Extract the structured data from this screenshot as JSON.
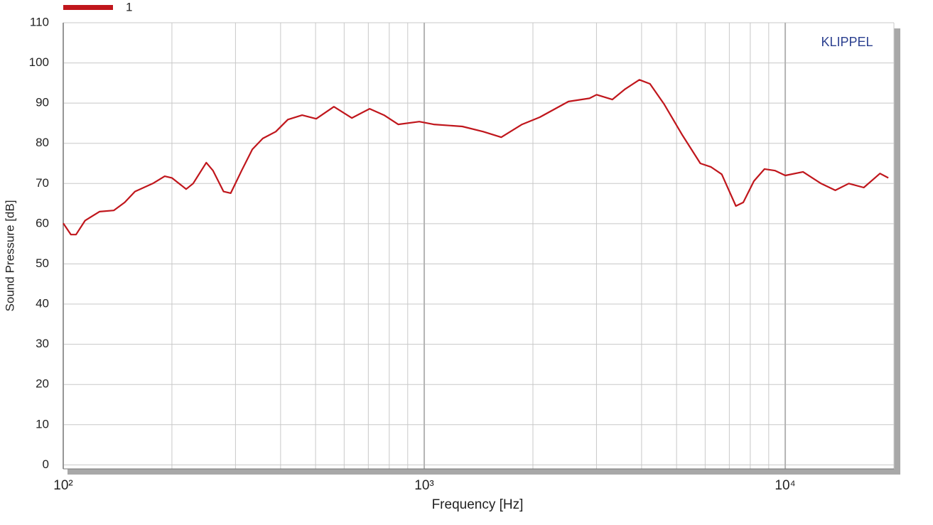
{
  "chart_data": {
    "type": "line",
    "brand": "KLIPPEL",
    "x_label": "Frequency [Hz]",
    "y_label": "Sound Pressure [dB]",
    "log_x": true,
    "xlim": [
      100,
      20000
    ],
    "ylim": [
      -1,
      110
    ],
    "xticks": [
      {
        "value": 100,
        "label": "10²"
      },
      {
        "value": 1000,
        "label": "10³"
      },
      {
        "value": 10000,
        "label": "10⁴"
      }
    ],
    "minor_xticks": [
      200,
      300,
      400,
      500,
      600,
      700,
      800,
      900,
      2000,
      3000,
      4000,
      5000,
      6000,
      7000,
      8000,
      9000,
      20000
    ],
    "yticks": [
      0,
      10,
      20,
      30,
      40,
      50,
      60,
      70,
      80,
      90,
      100,
      110
    ],
    "grid": true,
    "legend": "top-left",
    "x": [
      100,
      105,
      108.5,
      115,
      126,
      138,
      148,
      158,
      177,
      191,
      200,
      219,
      229,
      249,
      260,
      278,
      291,
      312,
      334,
      357,
      388,
      419,
      459,
      502,
      562,
      630,
      706,
      774,
      847,
      969,
      1062,
      1275,
      1457,
      1634,
      1866,
      2089,
      2509,
      2869,
      3003,
      3319,
      3601,
      3944,
      4220,
      4623,
      5190,
      5820,
      6230,
      6670,
      7300,
      7650,
      8190,
      8760,
      9380,
      10000,
      11200,
      12560,
      13760,
      15000,
      16500,
      18300,
      19300
    ],
    "series": [
      {
        "name": "1",
        "color": "#c0161c",
        "values": [
          60.1,
          57.3,
          57.3,
          60.8,
          63,
          63.3,
          65.3,
          68,
          70,
          71.8,
          71.4,
          68.6,
          70,
          75.2,
          73.2,
          68,
          67.6,
          73.2,
          78.5,
          81.2,
          82.9,
          85.9,
          87,
          86.1,
          89.1,
          86.3,
          88.6,
          87,
          84.7,
          85.4,
          84.7,
          84.2,
          82.9,
          81.5,
          84.7,
          86.5,
          90.4,
          91.2,
          92.1,
          90.9,
          93.5,
          95.8,
          94.8,
          89.7,
          82,
          75,
          74.1,
          72.3,
          64.4,
          65.3,
          70.6,
          73.6,
          73.2,
          72,
          72.9,
          70,
          68.3,
          70,
          69,
          72.5,
          71.4
        ]
      }
    ]
  }
}
